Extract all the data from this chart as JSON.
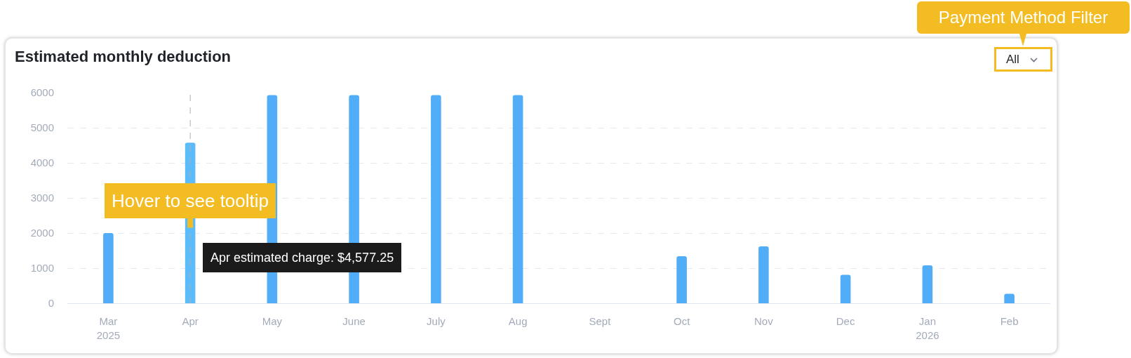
{
  "chart_data": {
    "type": "bar",
    "title": "Estimated monthly deduction",
    "categories": [
      "Mar\n2025",
      "Apr",
      "May",
      "June",
      "July",
      "Aug",
      "Sept",
      "Oct",
      "Nov",
      "Dec",
      "Jan\n2026",
      "Feb"
    ],
    "values": [
      2000,
      4577.25,
      5930,
      5930,
      5930,
      5930,
      null,
      1340,
      1620,
      810,
      1080,
      270
    ],
    "colors": [
      "#51adf8",
      "#5cbcfa",
      "#51adf8",
      "#51adf8",
      "#51adf8",
      "#51adf8",
      "#51adf8",
      "#51adf8",
      "#51adf8",
      "#51adf8",
      "#51adf8",
      "#51adf8"
    ],
    "ylim": [
      0,
      6000
    ],
    "yticks": [
      0,
      1000,
      2000,
      3000,
      4000,
      5000,
      6000
    ],
    "grid": "y",
    "ref_lines": [
      {
        "axis": "x",
        "value": "Apr",
        "color": "#a9aeb8",
        "line_style": "dashed"
      }
    ],
    "annotations": [
      {
        "text": "Apr estimated charge: $4,577.25",
        "x": "Apr",
        "y": 1300
      },
      {
        "text": "Hover to see tooltip",
        "x": "Apr",
        "y": 2150
      },
      "All",
      "Payment Method Filter"
    ]
  }
}
